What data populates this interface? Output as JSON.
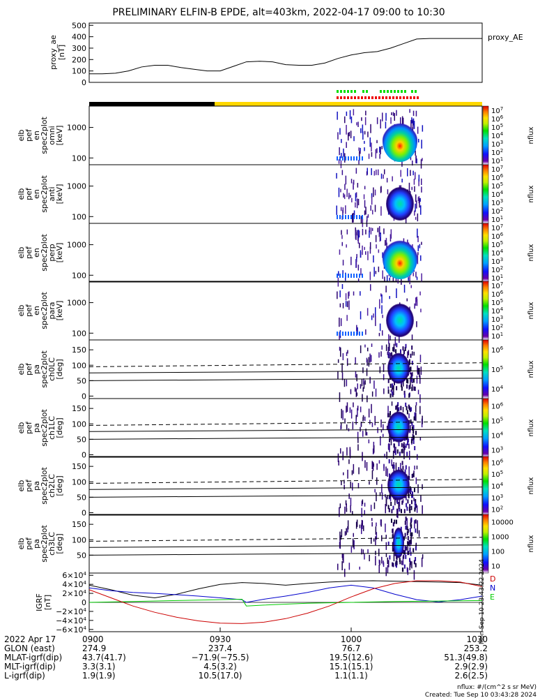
{
  "title": "PRELIMINARY ELFIN-B EPDE, alt=403km, 2022-04-17 09:00 to 10:30",
  "ae_panel": {
    "ylabel_lines": [
      "proxy_ae",
      "[nT]"
    ],
    "legend": "proxy_AE",
    "ticks": [
      0,
      100,
      200,
      300,
      400,
      500
    ],
    "ylim": [
      0,
      520
    ],
    "series": {
      "x": [
        0,
        3,
        6,
        9,
        12,
        15,
        18,
        21,
        24,
        27,
        30,
        33,
        36,
        39,
        42,
        45,
        48,
        51,
        54,
        57,
        60,
        63,
        66,
        69,
        72,
        75,
        78,
        81,
        84,
        87,
        90
      ],
      "y": [
        75,
        75,
        80,
        100,
        135,
        150,
        150,
        130,
        115,
        100,
        100,
        140,
        180,
        185,
        180,
        155,
        150,
        150,
        170,
        210,
        240,
        260,
        270,
        300,
        340,
        380,
        385,
        385,
        385,
        385,
        385
      ]
    }
  },
  "spectrogram_panels": [
    {
      "ylabel_lines": [
        "elb",
        "pef",
        "en",
        "spec2plot",
        "omni",
        "[keV]"
      ],
      "ticks": [
        "100",
        "1000"
      ],
      "cbar_ticks": [
        "10",
        "10",
        "10",
        "10",
        "10",
        "10",
        "10"
      ],
      "cbar_exps": [
        "1",
        "2",
        "3",
        "4",
        "5",
        "6",
        "7"
      ],
      "cbar_label": "nflux"
    },
    {
      "ylabel_lines": [
        "elb",
        "pef",
        "en",
        "spec2plot",
        "anti",
        "[keV]"
      ],
      "ticks": [
        "100",
        "1000"
      ],
      "cbar_ticks": [
        "10",
        "10",
        "10",
        "10",
        "10",
        "10",
        "10"
      ],
      "cbar_exps": [
        "1",
        "2",
        "3",
        "4",
        "5",
        "6",
        "7"
      ],
      "cbar_label": "nflux"
    },
    {
      "ylabel_lines": [
        "elb",
        "pef",
        "en",
        "spec2plot",
        "perp",
        "[keV]"
      ],
      "ticks": [
        "100",
        "1000"
      ],
      "cbar_ticks": [
        "10",
        "10",
        "10",
        "10",
        "10",
        "10",
        "10"
      ],
      "cbar_exps": [
        "1",
        "2",
        "3",
        "4",
        "5",
        "6",
        "7"
      ],
      "cbar_label": "nflux"
    },
    {
      "ylabel_lines": [
        "elb",
        "pef",
        "en",
        "spec2plot",
        "para",
        "[keV]"
      ],
      "ticks": [
        "100",
        "1000"
      ],
      "cbar_ticks": [
        "10",
        "10",
        "10",
        "10",
        "10",
        "10",
        "10"
      ],
      "cbar_exps": [
        "1",
        "2",
        "3",
        "4",
        "5",
        "6",
        "7"
      ],
      "cbar_label": "nflux"
    }
  ],
  "pitch_panels": [
    {
      "ylabel_lines": [
        "elb",
        "pef",
        "pa",
        "spec2plot",
        "ch0LC",
        "[deg]"
      ],
      "ticks": [
        "0",
        "50",
        "100",
        "150"
      ],
      "cbar_ticks": [
        "10",
        "10",
        "10"
      ],
      "cbar_exps": [
        "4",
        "5",
        "6"
      ],
      "cbar_label": "nflux"
    },
    {
      "ylabel_lines": [
        "elb",
        "pef",
        "pa",
        "spec2plot",
        "ch1LC",
        "[deg]"
      ],
      "ticks": [
        "0",
        "50",
        "100",
        "150"
      ],
      "cbar_ticks": [
        "10",
        "10",
        "10",
        "10"
      ],
      "cbar_exps": [
        "3",
        "4",
        "5",
        "6"
      ],
      "cbar_label": "nflux"
    },
    {
      "ylabel_lines": [
        "elb",
        "pef",
        "pa",
        "spec2plot",
        "ch2LC",
        "[deg]"
      ],
      "ticks": [
        "0",
        "50",
        "100",
        "150"
      ],
      "cbar_ticks": [
        "10",
        "10",
        "10",
        "10",
        "10"
      ],
      "cbar_exps": [
        "2",
        "3",
        "4",
        "5",
        "6"
      ],
      "cbar_label": "nflux"
    },
    {
      "ylabel_lines": [
        "elb",
        "pef",
        "pa",
        "spec2plot",
        "ch3LC",
        "[deg]"
      ],
      "ticks": [
        "50",
        "100",
        "150"
      ],
      "cbar_ticks": [
        "10",
        "100",
        "1000",
        "10000"
      ],
      "cbar_exps": [
        "",
        "",
        "",
        ""
      ],
      "cbar_label": "nflux"
    }
  ],
  "igrf_panel": {
    "ylabel_lines": [
      "IGRF",
      "[nT]"
    ],
    "ticks": [
      "0",
      "2×10",
      "4×10",
      "6×10",
      "−2×10",
      "−4×10",
      "−6×10"
    ],
    "tick_exps": [
      "",
      "4",
      "4",
      "4",
      "4",
      "4",
      "4"
    ],
    "tick_values": [
      0,
      20000,
      40000,
      60000,
      -20000,
      -40000,
      -60000
    ],
    "ylim": [
      -65000,
      65000
    ],
    "legend": [
      {
        "label": "D",
        "color": "#cc0000"
      },
      {
        "label": "N",
        "color": "#0000cc"
      },
      {
        "label": "E",
        "color": "#00cc00"
      }
    ],
    "side_text": "Mon Sep 10 23:43:22 2024",
    "series": [
      {
        "color": "#000000",
        "x": [
          0,
          5,
          10,
          15,
          20,
          25,
          30,
          35,
          40,
          45,
          50,
          55,
          60,
          65,
          70,
          75,
          80,
          85,
          90
        ],
        "y": [
          38000,
          28000,
          16000,
          10000,
          18000,
          30000,
          40000,
          44000,
          42000,
          38000,
          42000,
          45000,
          47000,
          48000,
          47000,
          46000,
          45000,
          44000,
          38000
        ]
      },
      {
        "color": "#0000cc",
        "x": [
          0,
          5,
          10,
          15,
          20,
          25,
          30,
          35,
          36,
          40,
          45,
          50,
          55,
          60,
          65,
          70,
          75,
          80,
          85,
          90
        ],
        "y": [
          32000,
          26000,
          22000,
          20000,
          17000,
          14000,
          10000,
          6000,
          0,
          7000,
          14000,
          22000,
          32000,
          38000,
          32000,
          18000,
          6000,
          1000,
          6000,
          14000
        ]
      },
      {
        "color": "#00cc00",
        "x": [
          0,
          10,
          20,
          30,
          35,
          36,
          40,
          50,
          60,
          70,
          80,
          90
        ],
        "y": [
          0,
          2000,
          4000,
          6000,
          7000,
          -8000,
          -6000,
          -2000,
          0,
          2000,
          3000,
          4000
        ]
      },
      {
        "color": "#cc0000",
        "x": [
          0,
          5,
          10,
          15,
          20,
          25,
          30,
          35,
          40,
          45,
          50,
          55,
          60,
          65,
          70,
          75,
          80,
          85,
          90
        ],
        "y": [
          28000,
          10000,
          -8000,
          -22000,
          -33000,
          -41000,
          -46000,
          -47000,
          -44000,
          -36000,
          -24000,
          -8000,
          12000,
          30000,
          42000,
          48000,
          48000,
          45000,
          35000
        ]
      }
    ]
  },
  "x_axis": {
    "ticks": [
      {
        "label": "0900",
        "min": 0
      },
      {
        "label": "0930",
        "min": 30
      },
      {
        "label": "1000",
        "min": 60
      },
      {
        "label": "1030",
        "min": 90
      }
    ]
  },
  "footer": {
    "rows": [
      {
        "label": "2022 Apr 17",
        "values": [
          "0900",
          "0930",
          "1000",
          "1030"
        ]
      },
      {
        "label": "GLON (east)",
        "values": [
          "274.9",
          "237.4",
          "76.7",
          "253.2"
        ]
      },
      {
        "label": "MLAT-igrf(dip)",
        "values": [
          "43.7(41.7)",
          "−71.9(−75.5)",
          "19.5(12.6)",
          "51.3(49.8)"
        ]
      },
      {
        "label": "MLT-igrf(dip)",
        "values": [
          "3.3(3.1)",
          "4.5(3.2)",
          "15.1(15.1)",
          "2.9(2.9)"
        ]
      },
      {
        "label": "L-igrf(dip)",
        "values": [
          "1.9(1.9)",
          "10.5(17.0)",
          "1.1(1.1)",
          "2.6(2.5)"
        ]
      }
    ],
    "units": "nflux: #/(cm^2 s sr MeV)",
    "created": "Created: Tue Sep 10 03:43:28 2024"
  },
  "colors": {
    "night_bar": "#000000",
    "day_bar": "#ffd700",
    "marker_green": "#00dd00",
    "marker_red": "#ee0000"
  }
}
